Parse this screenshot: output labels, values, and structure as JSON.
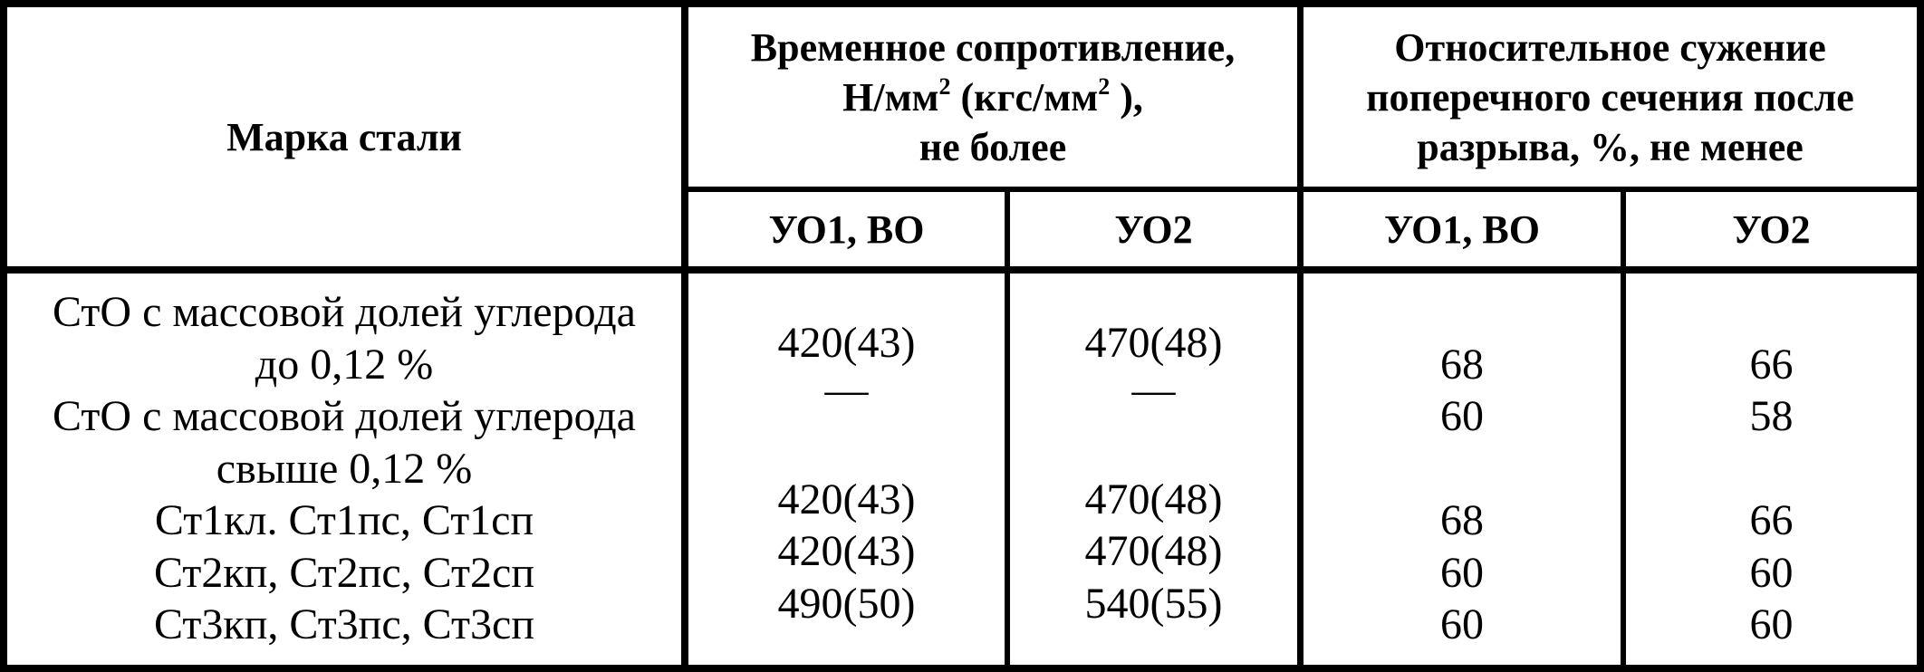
{
  "header": {
    "grade": "Марка стали",
    "tensile": {
      "line1": "Временное сопротивление,",
      "line2a": "Н/мм",
      "sup1": "2",
      "line2b": " (кгс/мм",
      "sup2": "2",
      "line2c": " ),",
      "line3": "не более"
    },
    "narrowing": {
      "line1": "Относительное сужение",
      "line2": "поперечного сечения после",
      "line3": "разрыва, %, не менее"
    },
    "sub": [
      "УО1, ВО",
      "УО2",
      "УО1, ВО",
      "УО2"
    ]
  },
  "body": {
    "grades": [
      "СтО с массовой долей углерода",
      "до 0,12 %",
      "СтО с массовой долей углерода",
      "свыше 0,12 %",
      "Ст1кл. Ст1пс, Ст1сп",
      "Ст2кп, Ст2пс, Ст2сп",
      "Ст3кп, Ст3пс, Ст3сп"
    ],
    "tensile_uo1": [
      "420(43)",
      "—",
      "",
      "420(43)",
      "420(43)",
      "490(50)"
    ],
    "tensile_uo2": [
      "470(48)",
      "—",
      "",
      "470(48)",
      "470(48)",
      "540(55)"
    ],
    "narrowing_uo1": [
      "",
      "68",
      "60",
      "",
      "68",
      "60",
      "60"
    ],
    "narrowing_uo2": [
      "",
      "66",
      "58",
      "",
      "66",
      "60",
      "60"
    ]
  }
}
